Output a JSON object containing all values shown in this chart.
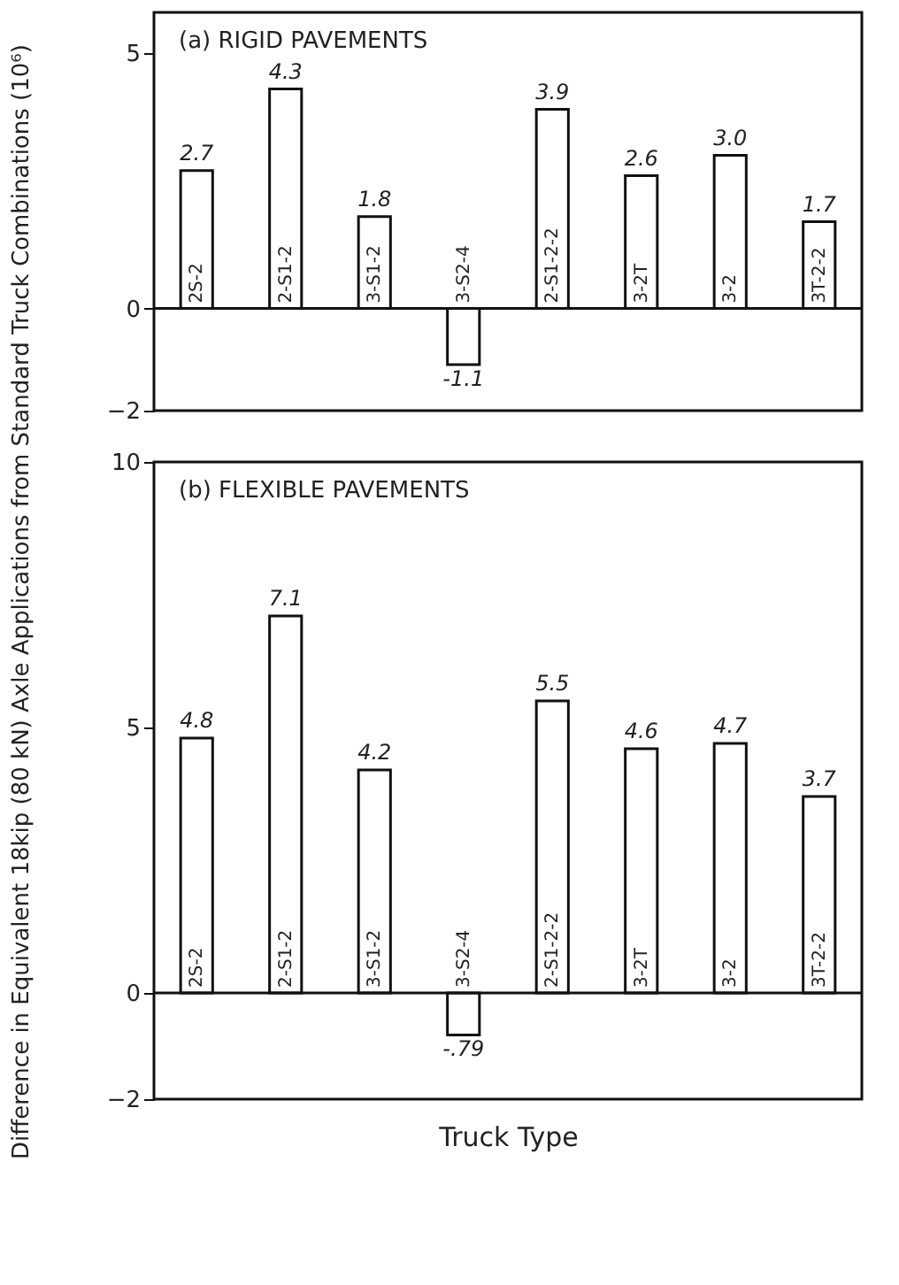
{
  "chart_data": [
    {
      "type": "bar",
      "title": "(a) RIGID PAVEMENTS",
      "ylabel": "Difference in Equivalent 18kip (80 kN) Axle Applications from Standard Truck Combinations (10⁶)",
      "categories": [
        "2S-2",
        "2-S1-2",
        "3-S1-2",
        "3-S2-4",
        "2-S1-2-2",
        "3-2T",
        "3-2",
        "3T-2-2"
      ],
      "values": [
        2.7,
        4.3,
        1.8,
        -1.1,
        3.9,
        2.6,
        3.0,
        1.7
      ],
      "value_labels": [
        "2.7",
        "4.3",
        "1.8",
        "-1.1",
        "3.9",
        "2.6",
        "3.0",
        "1.7"
      ],
      "color": "#ffffff",
      "ylim": [
        -2,
        5.8
      ],
      "yticks": [
        -2,
        0,
        5
      ],
      "ref_lines": [
        {
          "axis": "y",
          "value": 0
        }
      ],
      "tick_labels": "y",
      "grid": false
    },
    {
      "type": "bar",
      "title": "(b) FLEXIBLE PAVEMENTS",
      "xlabel": "Truck Type",
      "categories": [
        "2S-2",
        "2-S1-2",
        "3-S1-2",
        "3-S2-4",
        "2-S1-2-2",
        "3-2T",
        "3-2",
        "3T-2-2"
      ],
      "values": [
        4.8,
        7.1,
        4.2,
        -0.79,
        5.5,
        4.6,
        4.7,
        3.7
      ],
      "value_labels": [
        "4.8",
        "7.1",
        "4.2",
        "-.79",
        "5.5",
        "4.6",
        "4.7",
        "3.7"
      ],
      "color": "#ffffff",
      "ylim": [
        -2,
        10
      ],
      "yticks": [
        -2,
        0,
        5,
        10
      ],
      "ref_lines": [
        {
          "axis": "y",
          "value": 0
        }
      ],
      "tick_labels": "y",
      "grid": false
    }
  ]
}
